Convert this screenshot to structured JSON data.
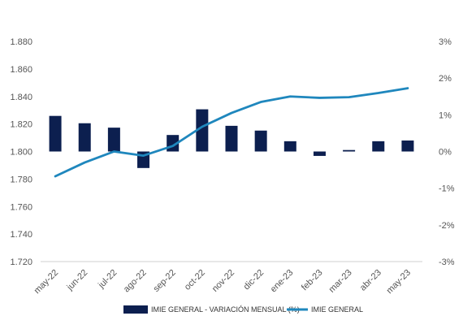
{
  "chart_data": {
    "type": "bar+line",
    "categories": [
      "may-22",
      "jun-22",
      "jul-22",
      "ago-22",
      "sep-22",
      "oct-22",
      "nov-22",
      "dic-22",
      "ene-23",
      "feb-23",
      "mar-23",
      "abr-23",
      "may-23"
    ],
    "series": [
      {
        "name": "IMIE GENERAL - VARIACIÓN MENSUAL (%)",
        "type": "bar",
        "axis": "right",
        "color": "#0c1f4f",
        "values": [
          0.97,
          0.77,
          0.65,
          -0.45,
          0.45,
          1.15,
          0.7,
          0.57,
          0.28,
          -0.12,
          0.04,
          0.28,
          0.3
        ]
      },
      {
        "name": "IMIE GENERAL",
        "type": "line",
        "axis": "left",
        "color": "#1f87bd",
        "values": [
          1782,
          1792,
          1800,
          1797,
          1804,
          1818,
          1828,
          1836,
          1840,
          1839,
          1839.5,
          1842.5,
          1846
        ]
      }
    ],
    "y_left": {
      "lim": [
        1720,
        1880
      ],
      "ticks": [
        "1.720",
        "1.740",
        "1.760",
        "1.780",
        "1.800",
        "1.820",
        "1.840",
        "1.860",
        "1.880"
      ]
    },
    "y_right": {
      "lim": [
        -3,
        3
      ],
      "ticks": [
        "-3%",
        "-2%",
        "-1%",
        "0%",
        "1%",
        "2%",
        "3%"
      ]
    },
    "grid": false,
    "legend_position": "bottom"
  }
}
